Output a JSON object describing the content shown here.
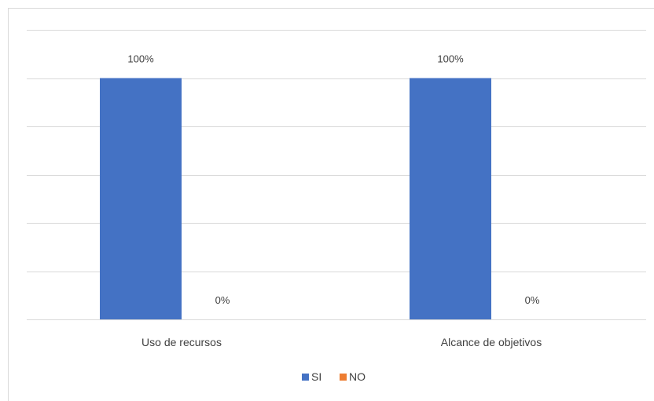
{
  "chart_data": {
    "type": "bar",
    "categories": [
      "Uso de recursos",
      "Alcance de objetivos"
    ],
    "series": [
      {
        "name": "SI",
        "values": [
          100,
          100
        ],
        "color": "#4472c4"
      },
      {
        "name": "NO",
        "values": [
          0,
          0
        ],
        "color": "#ed7d31"
      }
    ],
    "data_labels": [
      [
        "100%",
        "100%"
      ],
      [
        "0%",
        "0%"
      ]
    ],
    "ylim": [
      0,
      120
    ],
    "grid": true,
    "legend_position": "bottom"
  }
}
